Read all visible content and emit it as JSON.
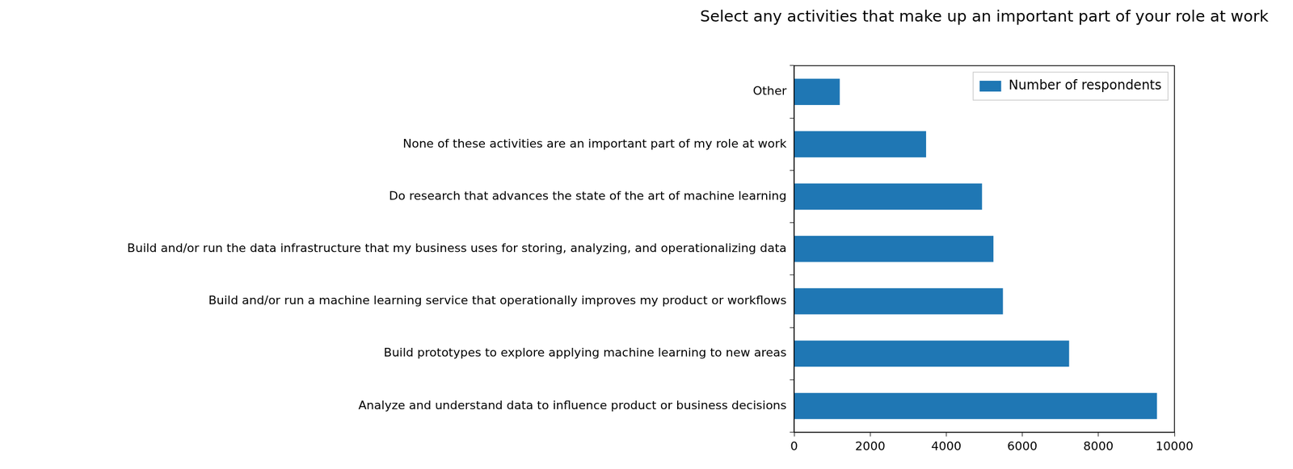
{
  "chart_data": {
    "type": "bar",
    "orientation": "horizontal",
    "title": "Select any activities that make up an important part of your role at work",
    "categories": [
      "Other",
      "None of these activities are an important part of my role at work",
      "Do research that advances the state of the art of machine learning",
      "Build and/or run the data infrastructure that my business uses for storing, analyzing, and operationalizing data",
      "Build and/or run a machine learning service that operationally improves my product or workflows",
      "Build prototypes to explore applying machine learning to new areas",
      "Analyze and understand data to influence product or business decisions"
    ],
    "series": [
      {
        "name": "Number of respondents",
        "color": "#1f77b4",
        "values": [
          1200,
          3470,
          4940,
          5240,
          5490,
          7230,
          9540
        ]
      }
    ],
    "xlim": [
      0,
      10000
    ],
    "xticks": [
      0,
      2000,
      4000,
      6000,
      8000,
      10000
    ],
    "grid": false,
    "legend": "upper right"
  }
}
